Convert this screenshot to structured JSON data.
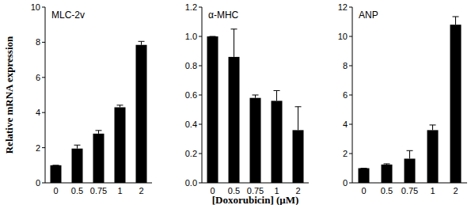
{
  "chart_data": [
    {
      "type": "bar",
      "title": "MLC-2v",
      "y_label": "Relative mRNA expression",
      "categories": [
        "0",
        "0.5",
        "0.75",
        "1",
        "2"
      ],
      "values": [
        1.0,
        1.95,
        2.8,
        4.3,
        7.85
      ],
      "errors": [
        0,
        0.2,
        0.18,
        0.12,
        0.2
      ],
      "color": "#000000",
      "ylim": [
        0,
        10
      ],
      "yticks": [
        0,
        2,
        4,
        6,
        8,
        10
      ],
      "grid": false
    },
    {
      "type": "bar",
      "title": "α-MHC",
      "x_label": "[Doxorubicin] (μM)",
      "categories": [
        "0",
        "0.5",
        "0.75",
        "1",
        "2"
      ],
      "values": [
        1.0,
        0.86,
        0.58,
        0.56,
        0.36
      ],
      "errors": [
        0,
        0.19,
        0.02,
        0.07,
        0.16
      ],
      "color": "#000000",
      "ylim": [
        0,
        1.2
      ],
      "yticks": [
        {
          "value": 0,
          "label": "0.0"
        },
        0.2,
        0.4,
        0.6,
        0.8,
        {
          "value": 1,
          "label": "1.0"
        },
        1.2
      ],
      "grid": false
    },
    {
      "type": "bar",
      "title": "ANP",
      "categories": [
        "0",
        "0.5",
        "0.75",
        "1",
        "2"
      ],
      "values": [
        1.0,
        1.25,
        1.65,
        3.6,
        10.8
      ],
      "errors": [
        0,
        0.05,
        0.55,
        0.35,
        0.55
      ],
      "color": "#000000",
      "ylim": [
        0,
        12
      ],
      "yticks": [
        0,
        2,
        4,
        6,
        8,
        10,
        12
      ],
      "grid": false
    }
  ]
}
